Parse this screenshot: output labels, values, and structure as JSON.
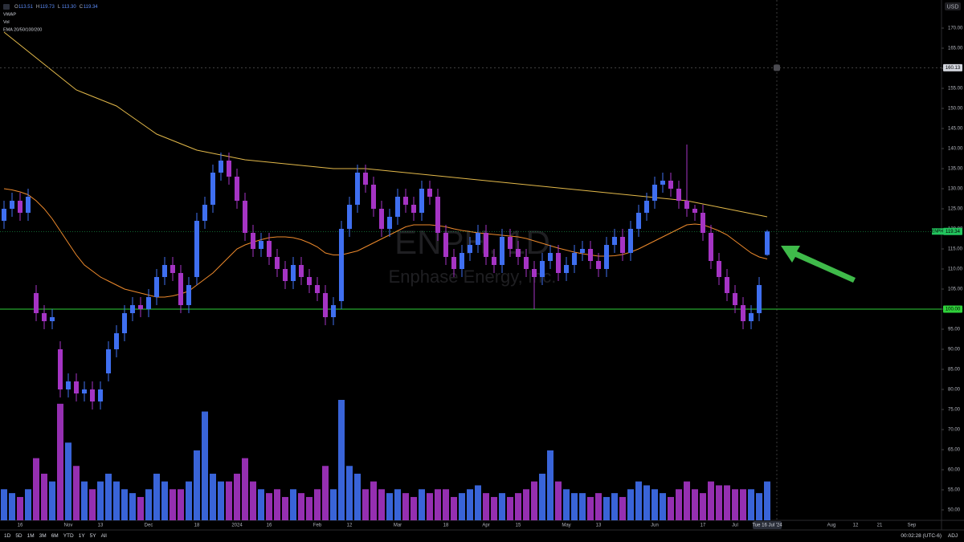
{
  "header": {
    "legend": [
      {
        "key": "O",
        "value": "113.51"
      },
      {
        "key": "H",
        "value": "119.73"
      },
      {
        "key": "L",
        "value": "113.30"
      },
      {
        "key": "C",
        "value": "119.34"
      }
    ],
    "indicators": [
      "VWAP",
      "Vol",
      "EMA 20/50/100/200"
    ]
  },
  "chart_data": {
    "type": "candlestick",
    "title": "ENPH, 1D",
    "subtitle": "Enphase Energy, Inc.",
    "currency": "USD",
    "categories": [
      null,
      null,
      "16",
      null,
      null,
      null,
      null,
      null,
      "Nov",
      null,
      null,
      null,
      "13",
      null,
      null,
      null,
      null,
      null,
      "Dec",
      null,
      null,
      null,
      null,
      null,
      "18",
      null,
      null,
      null,
      null,
      "2024",
      null,
      null,
      null,
      "16",
      null,
      null,
      null,
      null,
      null,
      "Feb",
      null,
      null,
      null,
      "12",
      null,
      null,
      null,
      null,
      null,
      "Mar",
      null,
      null,
      null,
      null,
      null,
      "18",
      null,
      null,
      null,
      null,
      "Apr",
      null,
      null,
      null,
      "15",
      null,
      null,
      null,
      null,
      null,
      "May",
      null,
      null,
      null,
      "13",
      null,
      null,
      null,
      null,
      null,
      null,
      "Jun",
      null,
      null,
      null,
      null,
      null,
      "17",
      null,
      null,
      null,
      "Jul",
      null,
      null,
      null,
      "Tue 16 Jul '24",
      null,
      null,
      null,
      null,
      null,
      null,
      null,
      "Aug",
      null,
      null,
      "12",
      null,
      null,
      "21",
      null,
      null,
      null,
      "Sep",
      null,
      null
    ],
    "open": [
      122,
      125,
      127,
      124,
      104,
      99,
      97,
      90,
      80,
      82,
      79,
      80,
      77,
      84,
      90,
      94,
      99,
      101,
      100,
      103,
      108,
      111,
      109,
      101,
      108,
      122,
      126,
      134,
      137,
      133,
      127,
      119,
      115,
      117,
      113,
      110,
      107,
      111,
      108,
      106,
      104,
      98,
      102,
      120,
      126,
      134,
      131,
      125,
      120,
      123,
      128,
      126,
      124,
      130,
      128,
      119,
      113,
      110,
      114,
      116,
      119,
      113,
      111,
      118,
      115,
      113,
      110,
      108,
      112,
      114,
      109,
      111,
      114,
      115,
      112,
      110,
      116,
      118,
      114,
      120,
      124,
      127,
      131,
      132,
      130,
      127,
      125,
      124,
      119,
      112,
      108,
      104,
      101,
      97,
      99,
      113.51,
      null,
      null,
      null,
      null,
      null,
      null,
      null,
      null,
      null,
      null,
      null,
      null,
      null,
      null,
      null,
      null,
      null,
      null,
      null,
      null
    ],
    "high": [
      127,
      129,
      129,
      130,
      106,
      101,
      100,
      92,
      84,
      84,
      82,
      82,
      82,
      92,
      96,
      101,
      103,
      103,
      105,
      110,
      113,
      113,
      111,
      108,
      124,
      128,
      136,
      139,
      139,
      135,
      129,
      121,
      119,
      119,
      115,
      112,
      113,
      113,
      110,
      108,
      106,
      103,
      122,
      128,
      136,
      136,
      133,
      127,
      125,
      130,
      130,
      128,
      132,
      132,
      130,
      121,
      115,
      116,
      118,
      121,
      121,
      115,
      120,
      120,
      117,
      115,
      112,
      114,
      116,
      116,
      113,
      116,
      117,
      117,
      114,
      118,
      120,
      120,
      122,
      126,
      129,
      133,
      134,
      134,
      132,
      141,
      126,
      126,
      121,
      114,
      110,
      106,
      103,
      101,
      108,
      119.73,
      null,
      null,
      null,
      null,
      null,
      null,
      null,
      null,
      null,
      null,
      null,
      null,
      null,
      null,
      null,
      null,
      null,
      null,
      null,
      null
    ],
    "low": [
      120,
      123,
      122,
      122,
      97,
      95,
      95,
      78,
      78,
      77,
      77,
      75,
      75,
      82,
      88,
      92,
      97,
      98,
      98,
      101,
      106,
      107,
      99,
      99,
      106,
      120,
      124,
      132,
      131,
      125,
      117,
      113,
      113,
      111,
      108,
      105,
      105,
      106,
      104,
      102,
      96,
      96,
      100,
      118,
      124,
      129,
      123,
      118,
      118,
      121,
      124,
      122,
      122,
      126,
      117,
      111,
      108,
      108,
      112,
      114,
      111,
      109,
      109,
      113,
      111,
      108,
      100,
      106,
      110,
      107,
      107,
      109,
      112,
      110,
      108,
      108,
      114,
      112,
      112,
      118,
      122,
      125,
      129,
      128,
      125,
      123,
      122,
      117,
      110,
      106,
      102,
      99,
      95,
      95,
      97,
      113.3,
      null,
      null,
      null,
      null,
      null,
      null,
      null,
      null,
      null,
      null,
      null,
      null,
      null,
      null,
      null,
      null,
      null,
      null,
      null,
      null
    ],
    "close": [
      125,
      127,
      124,
      128,
      99,
      97,
      98,
      80,
      82,
      79,
      80,
      77,
      80,
      90,
      94,
      99,
      101,
      100,
      103,
      108,
      111,
      109,
      101,
      106,
      122,
      126,
      134,
      137,
      133,
      127,
      119,
      115,
      117,
      113,
      110,
      107,
      111,
      108,
      106,
      104,
      98,
      101,
      120,
      126,
      134,
      131,
      125,
      120,
      123,
      128,
      126,
      124,
      130,
      128,
      119,
      113,
      110,
      114,
      116,
      119,
      113,
      111,
      118,
      115,
      113,
      110,
      108,
      112,
      114,
      109,
      111,
      114,
      115,
      112,
      110,
      116,
      118,
      114,
      120,
      124,
      127,
      131,
      132,
      130,
      127,
      125,
      124,
      119,
      112,
      108,
      104,
      101,
      97,
      99,
      106,
      119.34,
      null,
      null,
      null,
      null,
      null,
      null,
      null,
      null,
      null,
      null,
      null,
      null,
      null,
      null,
      null,
      null,
      null,
      null,
      null,
      null
    ],
    "volume": [
      4,
      3.5,
      3,
      4,
      8,
      6,
      5,
      15,
      10,
      7,
      5,
      4,
      5,
      6,
      5,
      4,
      3.5,
      3,
      4,
      6,
      5,
      4,
      4,
      5,
      9,
      14,
      6,
      5,
      5,
      6,
      8,
      5,
      4,
      3.5,
      4,
      3,
      4,
      3.5,
      3,
      4,
      7,
      4,
      15.5,
      7,
      6,
      4,
      5,
      4,
      3.5,
      4,
      3.5,
      3,
      4,
      3.5,
      4,
      4,
      3,
      3.5,
      4,
      4.5,
      3.5,
      3,
      3.5,
      3,
      3.5,
      4,
      5,
      6,
      9,
      5,
      4,
      3.5,
      3.5,
      3,
      3.5,
      3,
      3.5,
      3,
      4,
      5,
      4.5,
      4,
      3.5,
      3,
      4,
      5,
      4,
      3.5,
      5,
      4.5,
      4.5,
      4,
      4,
      4,
      3.5,
      5,
      null,
      null,
      null,
      null,
      null,
      null,
      null,
      null,
      null,
      null,
      null,
      null,
      null,
      null,
      null,
      null,
      null,
      null,
      null,
      null
    ],
    "up_color": "#3f6ff0",
    "down_color": "#a534c4",
    "lines": [
      {
        "color": "#e3b94a",
        "values": [
          169,
          167.4,
          165.8,
          164.2,
          162.6,
          161,
          159.4,
          157.8,
          156.2,
          154.6,
          153.8,
          153,
          152.2,
          151.4,
          150.6,
          149.2,
          147.8,
          146.4,
          145,
          143.6,
          142.8,
          142,
          141.2,
          140.4,
          139.6,
          139.2,
          138.8,
          138.4,
          138,
          137.6,
          137.2,
          137,
          136.8,
          136.6,
          136.4,
          136.2,
          136,
          135.8,
          135.6,
          135.4,
          135.2,
          135,
          135,
          135,
          135,
          135,
          134.8,
          134.6,
          134.4,
          134.2,
          134,
          133.8,
          133.6,
          133.4,
          133.2,
          133,
          132.8,
          132.6,
          132.4,
          132.2,
          132,
          131.8,
          131.6,
          131.4,
          131.2,
          131,
          130.8,
          130.6,
          130.4,
          130.2,
          130,
          129.8,
          129.6,
          129.4,
          129.2,
          129,
          128.8,
          128.6,
          128.4,
          128.2,
          128,
          127.8,
          127.6,
          127.4,
          127.2,
          127,
          126.6,
          126.2,
          125.8,
          125.4,
          125,
          124.6,
          124.2,
          123.8,
          123.4,
          123,
          null,
          null,
          null,
          null,
          null,
          null,
          null,
          null,
          null,
          null,
          null,
          null,
          null,
          null,
          null,
          null,
          null,
          null,
          null,
          null
        ]
      },
      {
        "color": "#ee8a2c",
        "values": [
          130,
          129.7,
          129.2,
          128.5,
          127,
          125,
          122.5,
          119.5,
          116.5,
          113.5,
          111,
          109.5,
          108,
          107,
          106,
          105,
          104.5,
          104,
          103.5,
          103,
          103,
          103.3,
          103.8,
          104.5,
          106,
          107.5,
          109,
          111,
          113,
          115,
          116,
          116.7,
          117.3,
          117.8,
          118,
          118,
          117.8,
          117.3,
          116.5,
          115.5,
          114,
          113.5,
          113.5,
          114,
          114.5,
          115.5,
          116.5,
          117.5,
          118.5,
          119.5,
          120.5,
          121,
          121,
          121,
          120.8,
          120.5,
          120,
          119.6,
          119.3,
          119,
          118.8,
          118.6,
          118.4,
          118.2,
          118,
          117.6,
          117,
          116.4,
          115.8,
          115.2,
          114.7,
          114.2,
          113.8,
          113.5,
          113.2,
          113.2,
          113.3,
          113.6,
          114.2,
          115,
          116,
          117,
          118,
          119,
          120,
          121,
          121.2,
          121,
          120.3,
          119.5,
          118.5,
          117,
          115.5,
          114,
          113,
          112.5,
          null,
          null,
          null,
          null,
          null,
          null,
          null,
          null,
          null,
          null,
          null,
          null,
          null,
          null,
          null,
          null,
          null,
          null,
          null,
          null
        ]
      }
    ],
    "price_lines": [
      {
        "name": "ENPH",
        "value": 119.34,
        "value_label": "119.34",
        "color": "#22c55e"
      },
      {
        "value": 100,
        "value_label": "100.00",
        "color": "#2fd13a"
      }
    ],
    "crosshair": {
      "value": 160.13,
      "value_label": "160.13"
    },
    "ylim": [
      47.4,
      177
    ],
    "yticks": [
      {
        "value": 50,
        "label": "50.00"
      },
      {
        "value": 55,
        "label": "55.00"
      },
      {
        "value": 60,
        "label": "60.00"
      },
      {
        "value": 65,
        "label": "65.00"
      },
      {
        "value": 70,
        "label": "70.00"
      },
      {
        "value": 75,
        "label": "75.00"
      },
      {
        "value": 80,
        "label": "80.00"
      },
      {
        "value": 85,
        "label": "85.00"
      },
      {
        "value": 90,
        "label": "90.00"
      },
      {
        "value": 95,
        "label": "95.00"
      },
      {
        "value": 100,
        "label": "100.00"
      },
      {
        "value": 105,
        "label": "105.00"
      },
      {
        "value": 110,
        "label": "110.00"
      },
      {
        "value": 115,
        "label": "115.00"
      },
      {
        "value": 120,
        "label": "120.00"
      },
      {
        "value": 125,
        "label": "125.00"
      },
      {
        "value": 130,
        "label": "130.00"
      },
      {
        "value": 135,
        "label": "135.00"
      },
      {
        "value": 140,
        "label": "140.00"
      },
      {
        "value": 145,
        "label": "145.00"
      },
      {
        "value": 150,
        "label": "150.00"
      },
      {
        "value": 155,
        "label": "155.00"
      },
      {
        "value": 160,
        "label": "160.00"
      },
      {
        "value": 165,
        "label": "165.00"
      },
      {
        "value": 170,
        "label": "170.00"
      }
    ],
    "grid": false
  },
  "toolbar": {
    "ranges": [
      "1D",
      "5D",
      "1M",
      "3M",
      "6M",
      "YTD",
      "1Y",
      "5Y",
      "All"
    ],
    "clock": "00:02:28 (UTC-6)",
    "adj": "ADJ"
  }
}
